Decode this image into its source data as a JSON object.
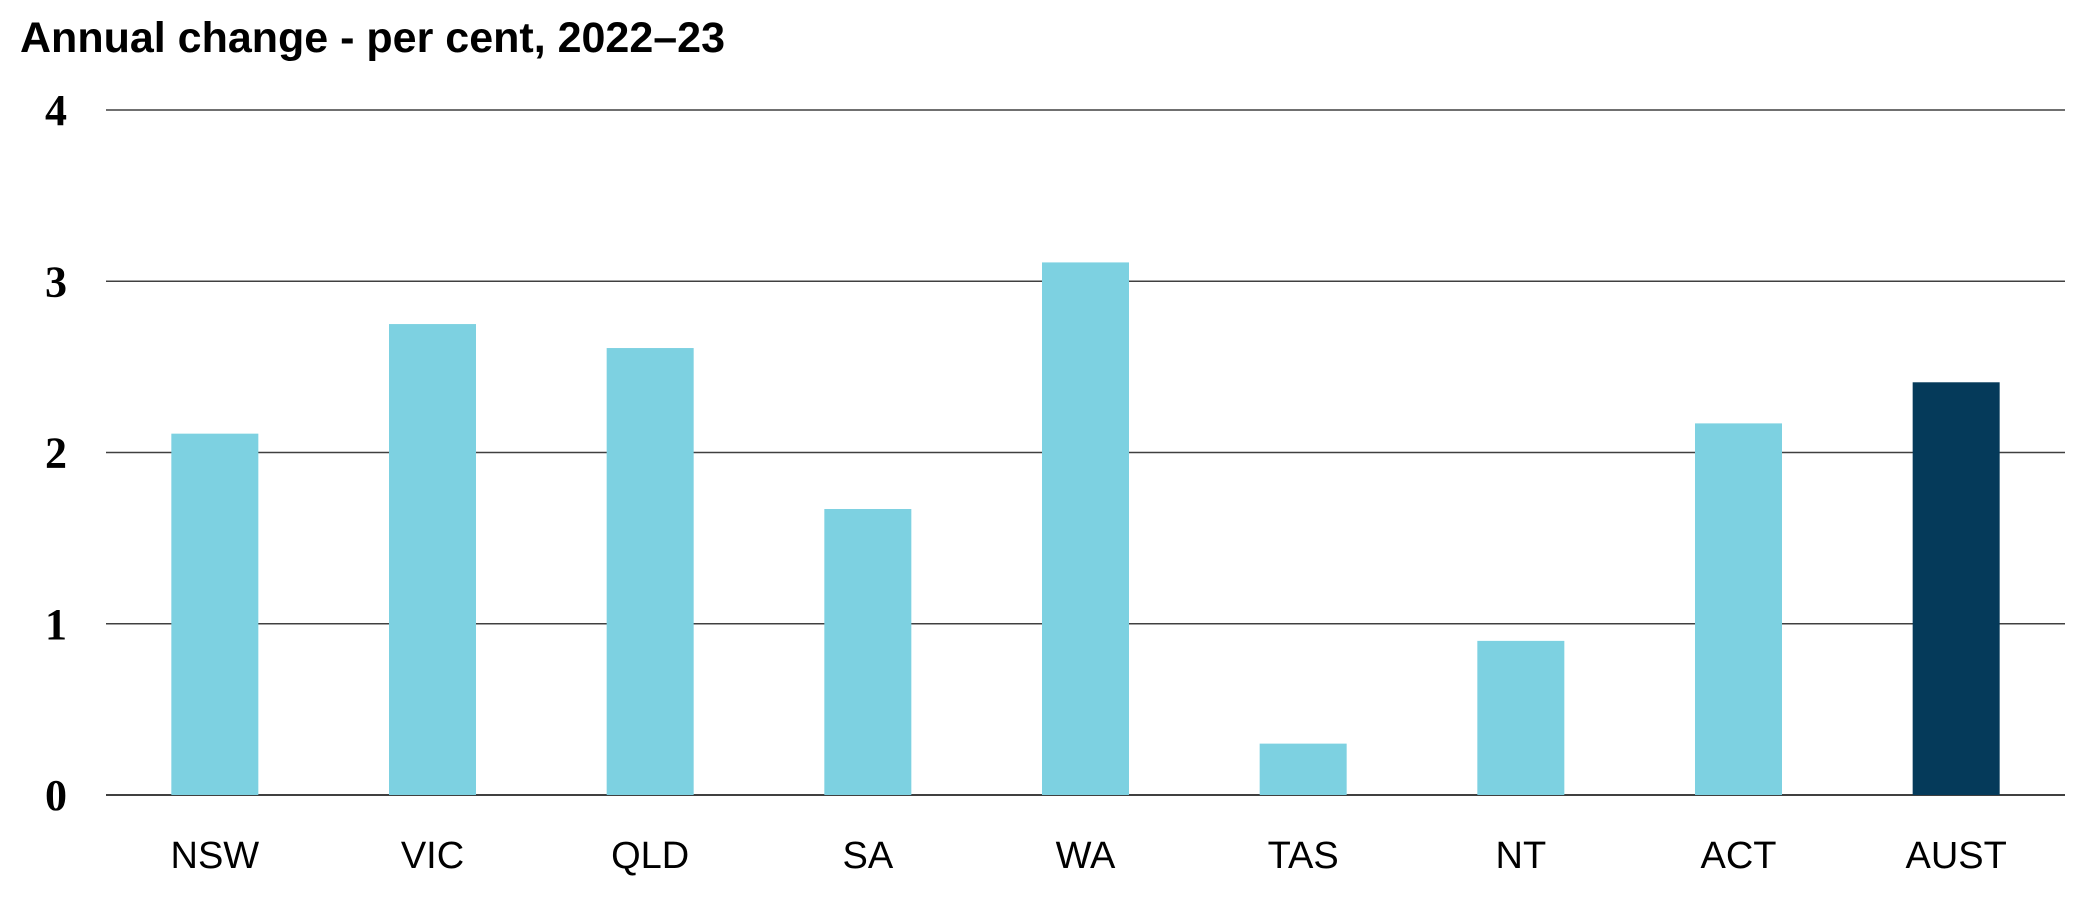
{
  "chart_data": {
    "type": "bar",
    "title": "Annual change - per cent, 2022–23",
    "xlabel": "",
    "ylabel": "",
    "categories": [
      "NSW",
      "VIC",
      "QLD",
      "SA",
      "WA",
      "TAS",
      "NT",
      "ACT",
      "AUST"
    ],
    "values": [
      2.11,
      2.75,
      2.61,
      1.67,
      3.11,
      0.3,
      0.9,
      2.17,
      2.41
    ],
    "yticks": [
      "0",
      "1",
      "2",
      "3",
      "4"
    ],
    "ylim": [
      0,
      4
    ],
    "grid": true,
    "legend": "none",
    "colors": {
      "state_bar": "#7dd1e1",
      "total_bar": "#053a5a",
      "gridline": "#404040"
    },
    "highlight_category": "AUST"
  }
}
